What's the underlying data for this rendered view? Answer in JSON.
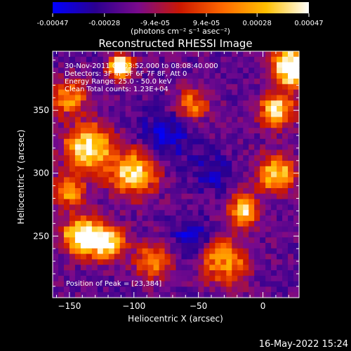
{
  "chart_data": {
    "type": "heatmap",
    "title": "Reconstructed RHESSI Image",
    "xlabel": "Heliocentric X (arcsec)",
    "ylabel": "Heliocentric Y (arcsec)",
    "xlim": [
      -163,
      28
    ],
    "ylim": [
      201,
      397
    ],
    "xticks": [
      -150,
      -100,
      -50,
      0
    ],
    "xtick_labels": [
      "−150",
      "−100",
      "−50",
      "0"
    ],
    "yticks": [
      250,
      300,
      350
    ],
    "ytick_labels": [
      "250",
      "300",
      "350"
    ],
    "colorbar": {
      "range": [
        -0.00047,
        0.00047
      ],
      "ticks": [
        -0.00047,
        -0.00028,
        -9.4e-05,
        9.4e-05,
        0.00028,
        0.00047
      ],
      "tick_labels": [
        "-0.00047",
        "-0.00028",
        "-9.4e-05",
        "9.4e-05",
        "0.00028",
        "0.00047"
      ],
      "unit_label": "(photons cm⁻² s⁻¹ asec⁻²)",
      "colormap": [
        "#0000ff",
        "#2a0090",
        "#7a0a8c",
        "#cc1800",
        "#ff6a00",
        "#ffc000",
        "#ffffff"
      ]
    },
    "annotations": {
      "time_range": "30-Nov-2011 08:03:52.000 to 08:08:40.000",
      "detectors": "Detectors: 3F 4F 5F 6F 7F 8F, Att 0",
      "energy": "Energy Range: 25.0 - 50.0 keV",
      "clean": "Clean     Total counts: 1.23E+04",
      "peak": "Position of Peak = [23,384]"
    },
    "grid": {
      "nx": 44,
      "ny": 45
    },
    "sources": [
      {
        "x": -110,
        "y": 385,
        "sigma": 6,
        "amp": 1.0
      },
      {
        "x": -135,
        "y": 320,
        "sigma": 12,
        "amp": 0.8
      },
      {
        "x": -100,
        "y": 300,
        "sigma": 12,
        "amp": 0.7
      },
      {
        "x": -140,
        "y": 250,
        "sigma": 10,
        "amp": 0.9
      },
      {
        "x": -120,
        "y": 245,
        "sigma": 9,
        "amp": 0.75
      },
      {
        "x": 23,
        "y": 384,
        "sigma": 10,
        "amp": 1.05
      },
      {
        "x": 10,
        "y": 350,
        "sigma": 9,
        "amp": 0.7
      },
      {
        "x": 10,
        "y": 300,
        "sigma": 10,
        "amp": 0.65
      },
      {
        "x": -15,
        "y": 270,
        "sigma": 8,
        "amp": 0.75
      },
      {
        "x": -30,
        "y": 230,
        "sigma": 12,
        "amp": 0.55
      },
      {
        "x": -150,
        "y": 285,
        "sigma": 8,
        "amp": 0.55
      },
      {
        "x": -55,
        "y": 355,
        "sigma": 9,
        "amp": 0.45
      },
      {
        "x": -150,
        "y": 360,
        "sigma": 10,
        "amp": 0.5
      },
      {
        "x": -85,
        "y": 230,
        "sigma": 10,
        "amp": 0.45
      }
    ],
    "dark_spots": [
      {
        "x": -55,
        "y": 250,
        "sigma": 10,
        "amp": 0.8
      },
      {
        "x": -75,
        "y": 330,
        "sigma": 14,
        "amp": 0.7
      },
      {
        "x": -40,
        "y": 300,
        "sigma": 10,
        "amp": 0.6
      }
    ]
  },
  "footer": {
    "timestamp": "16-May-2022 15:24"
  }
}
